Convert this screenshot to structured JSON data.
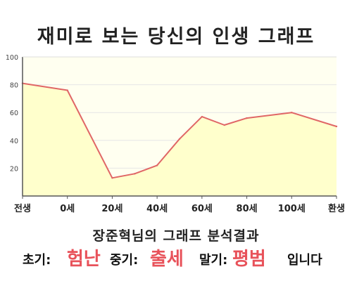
{
  "title": "재미로 보는 당신의 인생 그래프",
  "chart_data": {
    "type": "area",
    "title": "",
    "xlabel": "",
    "ylabel": "",
    "x_ticks": [
      "전생",
      "0세",
      "20세",
      "40세",
      "60세",
      "80세",
      "100세",
      "환생"
    ],
    "y_ticks": [
      20,
      40,
      60,
      80,
      100
    ],
    "ylim": [
      0,
      100
    ],
    "grid": true,
    "series": [
      {
        "values": [
          {
            "x": "전생",
            "y": 81
          },
          {
            "x": "0세",
            "y": 76
          },
          {
            "x": "20세",
            "y": 13
          },
          {
            "x": "30세",
            "y": 16
          },
          {
            "x": "40세",
            "y": 22
          },
          {
            "x": "50세",
            "y": 41
          },
          {
            "x": "60세",
            "y": 57
          },
          {
            "x": "70세",
            "y": 51
          },
          {
            "x": "80세",
            "y": 56
          },
          {
            "x": "100세",
            "y": 60
          },
          {
            "x": "환생",
            "y": 50
          }
        ]
      }
    ],
    "colors": {
      "line": "#e06666",
      "fill": "#ffffcc",
      "background": "#fffff0"
    }
  },
  "caption": "장준혁님의 그래프 분석결과",
  "result": {
    "early_label": "초기:",
    "early_value": "험난",
    "middle_label": "중기:",
    "middle_value": "출세",
    "late_label": "말기:",
    "late_value": "평범",
    "ending": "입니다"
  }
}
